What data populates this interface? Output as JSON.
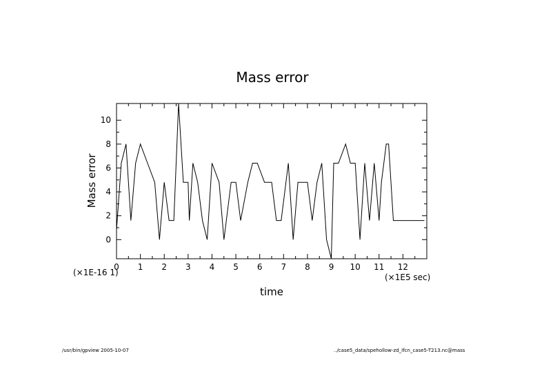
{
  "chart_data": {
    "type": "line",
    "title": "Mass error",
    "xlabel": "time",
    "ylabel": "Mass error",
    "x_scale_label": "(×1E5 sec)",
    "y_scale_label": "(×1E-16 1)",
    "xlim": [
      0,
      13
    ],
    "ylim": [
      -1.6,
      11.4
    ],
    "x_ticks": [
      0,
      1,
      2,
      3,
      4,
      5,
      6,
      7,
      8,
      9,
      10,
      11,
      12
    ],
    "y_ticks": [
      0,
      2,
      4,
      6,
      8,
      10
    ],
    "grid": false,
    "series": [
      {
        "x": [
          0.0,
          0.2,
          0.4,
          0.6,
          0.8,
          1.0,
          1.3,
          1.6,
          1.8,
          2.0,
          2.2,
          2.4,
          2.6,
          2.8,
          3.0,
          3.05,
          3.2,
          3.4,
          3.6,
          3.8,
          4.0,
          4.3,
          4.5,
          4.8,
          5.0,
          5.2,
          5.5,
          5.7,
          5.9,
          6.2,
          6.5,
          6.7,
          6.9,
          7.2,
          7.4,
          7.6,
          7.8,
          8.0,
          8.2,
          8.4,
          8.6,
          8.8,
          9.0,
          9.1,
          9.3,
          9.6,
          9.8,
          10.0,
          10.2,
          10.4,
          10.6,
          10.8,
          11.0,
          11.1,
          11.3,
          11.4,
          11.6,
          11.8,
          12.0,
          12.2,
          12.5,
          12.7,
          12.9
        ],
        "y": [
          0.8,
          6.4,
          8.0,
          1.6,
          6.4,
          8.0,
          6.4,
          4.8,
          0.0,
          4.8,
          1.6,
          1.6,
          11.4,
          4.8,
          4.8,
          1.6,
          6.4,
          4.8,
          1.6,
          0.0,
          6.4,
          4.8,
          0.0,
          4.8,
          4.8,
          1.6,
          4.8,
          6.4,
          6.4,
          4.8,
          4.8,
          1.6,
          1.6,
          6.4,
          0.0,
          4.8,
          4.8,
          4.8,
          1.6,
          4.8,
          6.4,
          0.0,
          -1.6,
          6.4,
          6.4,
          8.0,
          6.4,
          6.4,
          0.0,
          6.4,
          1.6,
          6.4,
          1.6,
          4.8,
          8.0,
          8.0,
          1.6,
          1.6,
          1.6,
          1.6,
          1.6,
          1.6,
          1.6
        ]
      }
    ]
  },
  "footer": {
    "left": "/usr/bin/gpview  2005-10-07",
    "right": "../case5_data/spehollow-zd_Ifcn_case5-T213.nc@mass"
  }
}
